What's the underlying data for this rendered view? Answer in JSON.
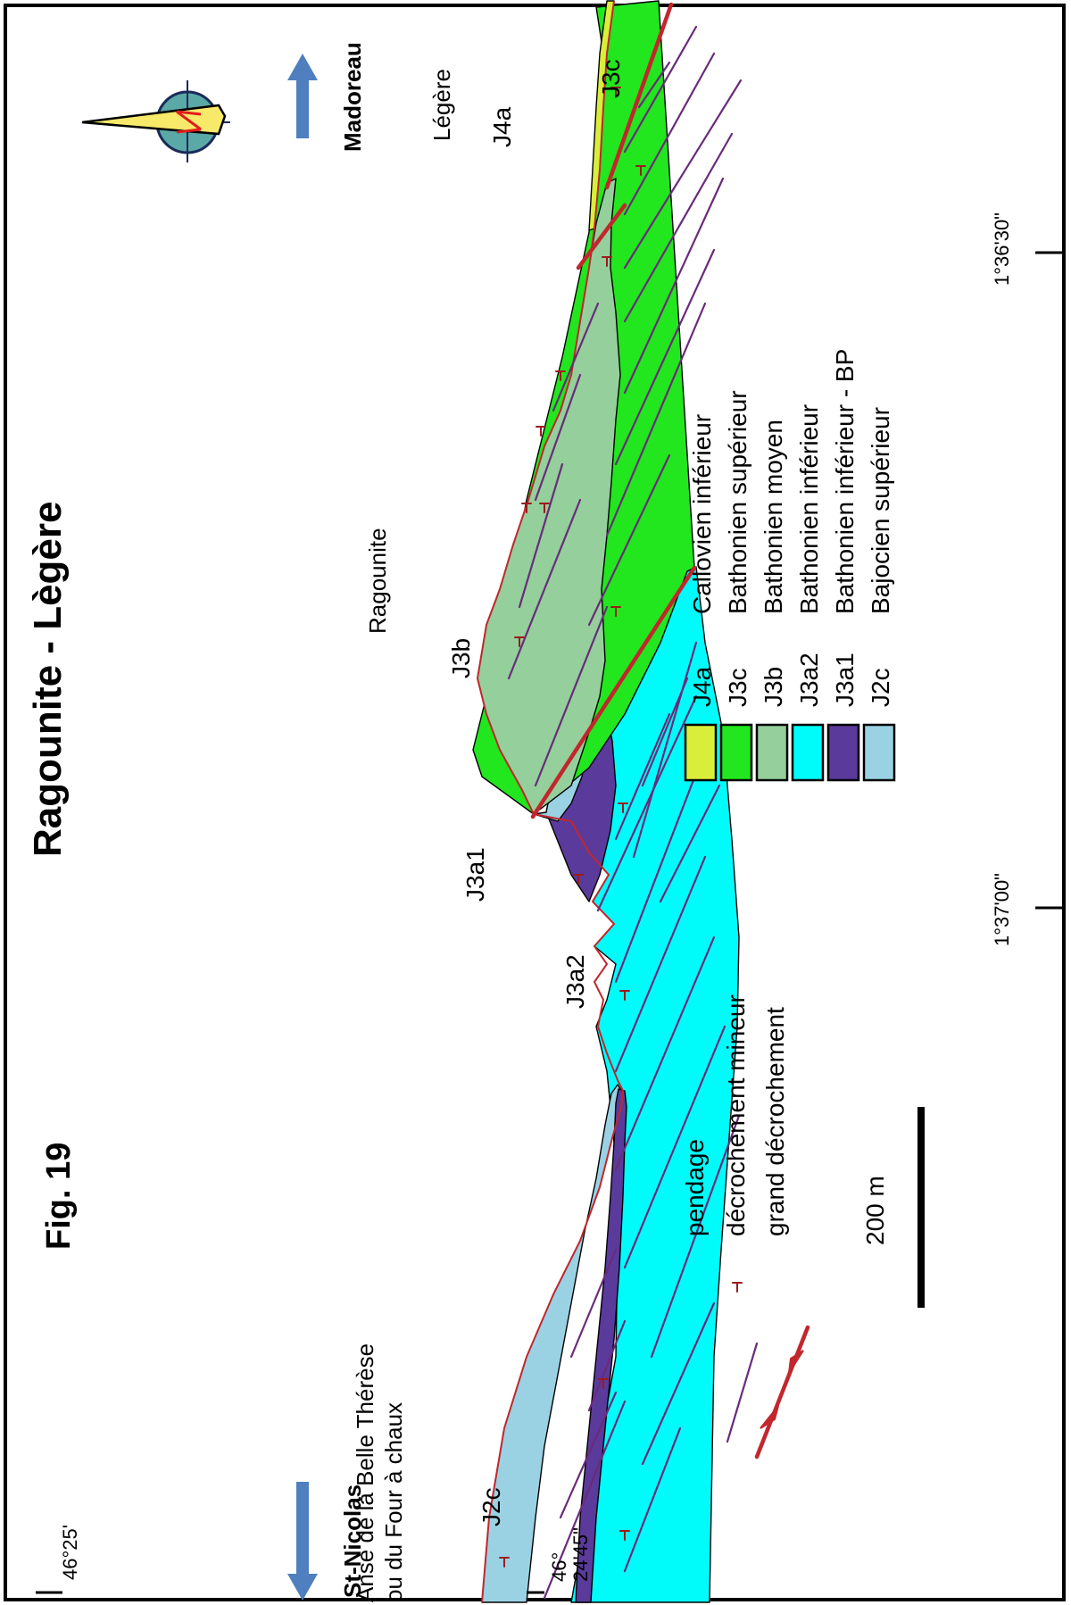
{
  "figure": {
    "fig_label": "Fig. 19",
    "title": "Ragounite - Lègère"
  },
  "directions": {
    "north": "St-Nicolas",
    "south": "Madoreau"
  },
  "coordinates": {
    "lat_top": "46°25'",
    "lat_bottom_1": "46°",
    "lat_bottom_2": "24'45\"",
    "lon_1": "1°37'00\"",
    "lon_2": "1°36'30\""
  },
  "places": {
    "anse_line1": "Anse de la Belle Thérèse",
    "anse_line2": "ou du Four à chaux",
    "ragounite": "Ragounite",
    "legere": "Légère"
  },
  "unit_labels": {
    "J2c": "J2c",
    "J3a1": "J3a1",
    "J3a2": "J3a2",
    "J3b": "J3b",
    "J3c": "J3c",
    "J4a": "J4a"
  },
  "legend_units": [
    {
      "code": "J4a",
      "name": "Callovien inférieur",
      "color": "#d9ee3a"
    },
    {
      "code": "J3c",
      "name": "Bathonien supérieur",
      "color": "#22e61e"
    },
    {
      "code": "J3b",
      "name": "Bathonien moyen",
      "color": "#94cf9c"
    },
    {
      "code": "J3a2",
      "name": "Bathonien inférieur",
      "color": "#00fbfb"
    },
    {
      "code": "J3a1",
      "name": "Bathonien inférieur - BP",
      "color": "#5a3a9b"
    },
    {
      "code": "J2c",
      "name": "Bajocien supérieur",
      "color": "#9ad2e4"
    }
  ],
  "legend_symbols": {
    "pendage": "pendage",
    "minor": "décrochement mineur",
    "major": "grand décrochement"
  },
  "scale": {
    "label": "200 m"
  },
  "colors": {
    "minor_fault": "#6a2b7a",
    "major_fault": "#c1272d",
    "arrow": "#4f7fbf"
  }
}
